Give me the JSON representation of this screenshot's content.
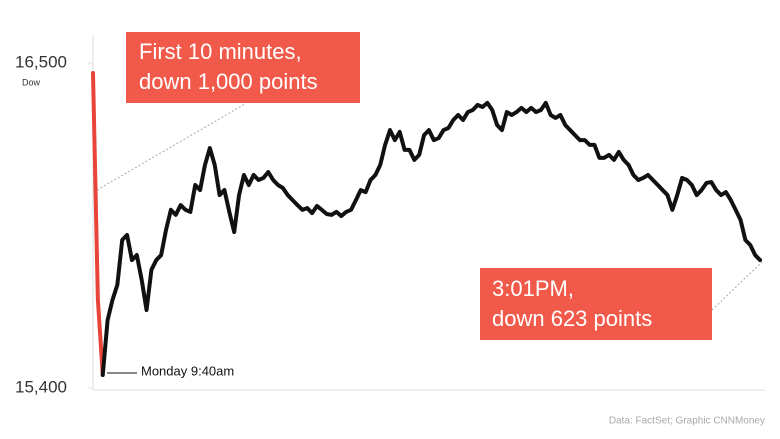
{
  "chart_data": {
    "type": "line",
    "axis_label": "Dow",
    "ylim": [
      15400,
      16500
    ],
    "yticks": [
      {
        "value": 15400,
        "label": "15,400"
      },
      {
        "value": 16500,
        "label": "16,500"
      }
    ],
    "series": [
      {
        "color": "#e8443a",
        "values": [
          16466,
          15700,
          15444,
          null,
          null,
          null,
          null,
          null,
          null,
          null,
          null,
          null,
          null,
          null,
          null,
          null,
          null,
          null,
          null,
          null,
          null,
          null,
          null,
          null,
          null,
          null,
          null,
          null,
          null,
          null,
          null,
          null,
          null,
          null,
          null,
          null,
          null,
          null,
          null,
          null,
          null,
          null,
          null,
          null,
          null,
          null,
          null,
          null,
          null,
          null,
          null,
          null,
          null,
          null,
          null,
          null,
          null,
          null,
          null,
          null,
          null,
          null,
          null,
          null,
          null,
          null,
          null,
          null,
          null,
          null,
          null,
          null,
          null,
          null,
          null,
          null,
          null,
          null,
          null,
          null,
          null,
          null,
          null,
          null,
          null,
          null,
          null,
          null,
          null,
          null,
          null,
          null,
          null,
          null,
          null,
          null,
          null,
          null,
          null,
          null,
          null,
          null,
          null,
          null,
          null,
          null,
          null,
          null,
          null,
          null,
          null,
          null,
          null,
          null,
          null,
          null,
          null,
          null,
          null,
          null,
          null,
          null,
          null,
          null,
          null,
          null,
          null,
          null,
          null,
          null,
          null,
          null,
          null,
          null,
          null,
          null,
          null,
          null
        ]
      },
      {
        "color": "#111111",
        "values": [
          null,
          null,
          15444,
          15630,
          15698,
          15749,
          15901,
          15918,
          15833,
          15850,
          15766,
          15664,
          15800,
          15833,
          15850,
          15935,
          16003,
          15986,
          16019,
          16003,
          15996,
          16087,
          16070,
          16155,
          16212,
          16155,
          16053,
          16070,
          15996,
          15928,
          16053,
          16121,
          16087,
          16121,
          16104,
          16111,
          16131,
          16104,
          16087,
          16077,
          16053,
          16036,
          16019,
          16003,
          16009,
          15992,
          16016,
          16003,
          15989,
          15986,
          15996,
          15982,
          15996,
          16003,
          16036,
          16070,
          16063,
          16104,
          16121,
          16155,
          16223,
          16273,
          16239,
          16267,
          16206,
          16206,
          16172,
          16189,
          16256,
          16273,
          16239,
          16246,
          16273,
          16280,
          16307,
          16324,
          16307,
          16334,
          16341,
          16358,
          16351,
          16365,
          16341,
          16290,
          16273,
          16334,
          16324,
          16334,
          16348,
          16334,
          16348,
          16334,
          16341,
          16365,
          16324,
          16314,
          16324,
          16290,
          16273,
          16256,
          16239,
          16239,
          16223,
          16223,
          16179,
          16179,
          16189,
          16172,
          16199,
          16172,
          16155,
          16121,
          16104,
          16111,
          16121,
          16104,
          16087,
          16070,
          16053,
          16003,
          16053,
          16111,
          16104,
          16087,
          16053,
          16070,
          16094,
          16097,
          16070,
          16053,
          16063,
          16036,
          16003,
          15969,
          15901,
          15884,
          15850,
          15833
        ]
      }
    ],
    "annotations": [
      {
        "lines": [
          "First 10 minutes,",
          "down 1,000 points"
        ]
      },
      {
        "lines": [
          "3:01PM,",
          "down 623 points"
        ]
      },
      {
        "lines": [
          "Monday 9:40am"
        ]
      }
    ],
    "source": "Data: FactSet; Graphic CNNMoney"
  }
}
